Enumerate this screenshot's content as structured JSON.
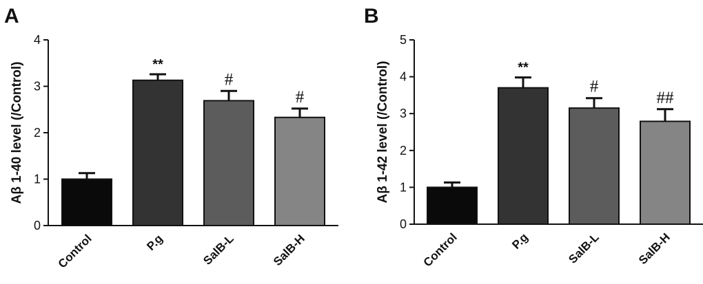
{
  "chart_data": [
    {
      "type": "bar",
      "panel_label": "A",
      "ylabel": "Aβ 1-40 level (/Control)",
      "categories": [
        "Control",
        "P.g",
        "SalB-L",
        "SalB-H"
      ],
      "values": [
        1.0,
        3.13,
        2.69,
        2.33
      ],
      "errors": [
        0.13,
        0.13,
        0.21,
        0.19
      ],
      "significance": [
        "",
        "**",
        "#",
        "#"
      ],
      "colors": [
        "#0a0a0a",
        "#333333",
        "#5c5c5c",
        "#858585"
      ],
      "ylim": [
        0,
        4
      ],
      "yticks": [
        0,
        1,
        2,
        3,
        4
      ],
      "grid": false,
      "legend": "none"
    },
    {
      "type": "bar",
      "panel_label": "B",
      "ylabel": "Aβ 1-42 level (/Control)",
      "categories": [
        "Control",
        "P.g",
        "SalB-L",
        "SalB-H"
      ],
      "values": [
        1.0,
        3.7,
        3.15,
        2.79
      ],
      "errors": [
        0.13,
        0.28,
        0.27,
        0.33
      ],
      "significance": [
        "",
        "**",
        "#",
        "##"
      ],
      "colors": [
        "#0a0a0a",
        "#333333",
        "#5c5c5c",
        "#858585"
      ],
      "ylim": [
        0,
        5
      ],
      "yticks": [
        0,
        1,
        2,
        3,
        4,
        5
      ],
      "grid": false,
      "legend": "none"
    }
  ]
}
